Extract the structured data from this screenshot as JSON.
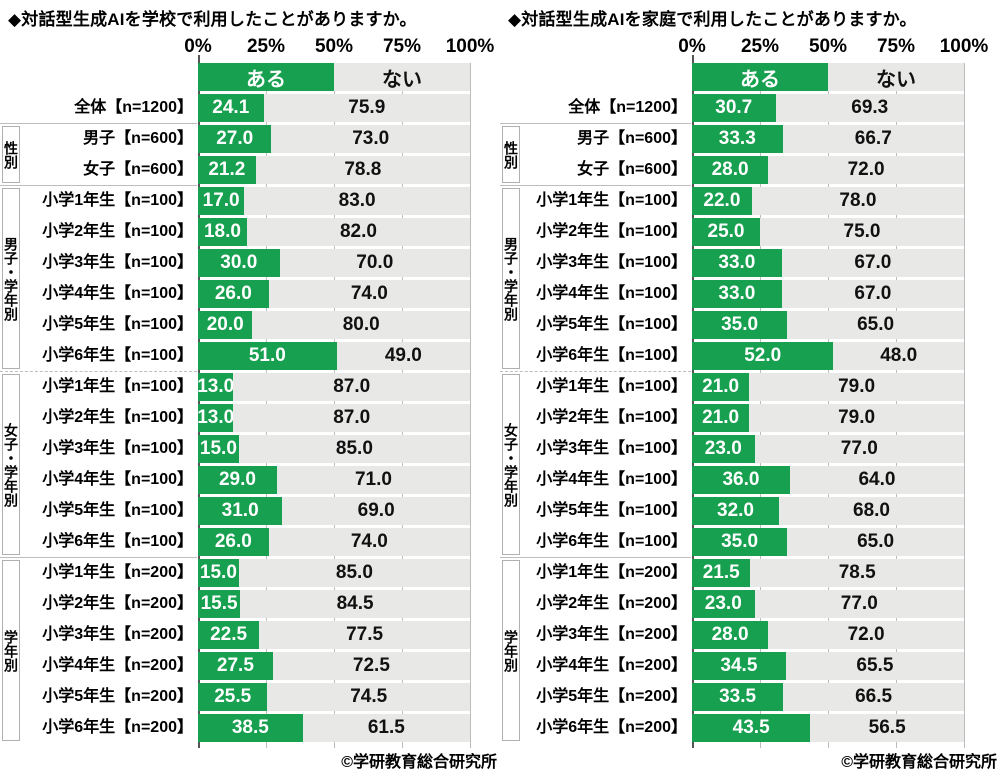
{
  "colors": {
    "yes_green": "#17a04f",
    "no_gray": "#e8e8e7",
    "grid_light": "#bdbdbd",
    "grid_zero": "#555555",
    "box_border": "#b0b0b0"
  },
  "chart_data": [
    {
      "type": "bar",
      "orientation": "horizontal",
      "stacked": true,
      "title": "◆対話型生成AIを学校で利用したことがありますか。",
      "legend": [
        "ある",
        "ない"
      ],
      "legend_position": "top",
      "x_ticks": [
        "0%",
        "25%",
        "50%",
        "75%",
        "100%"
      ],
      "xlim": [
        0,
        100
      ],
      "grid": true,
      "footer": "©学研教育総合研究所",
      "groups": [
        {
          "label": "",
          "box": false,
          "separator": "none",
          "rows": [
            {
              "label": "全体【n=1200】",
              "yes": 24.1,
              "no": 75.9
            }
          ]
        },
        {
          "label": "性別",
          "box": true,
          "separator": "solid",
          "rows": [
            {
              "label": "男子【n=600】",
              "yes": 27.0,
              "no": 73.0
            },
            {
              "label": "女子【n=600】",
              "yes": 21.2,
              "no": 78.8
            }
          ]
        },
        {
          "label": "男子・学年別",
          "box": true,
          "separator": "solid",
          "rows": [
            {
              "label": "小学1年生【n=100】",
              "yes": 17.0,
              "no": 83.0
            },
            {
              "label": "小学2年生【n=100】",
              "yes": 18.0,
              "no": 82.0
            },
            {
              "label": "小学3年生【n=100】",
              "yes": 30.0,
              "no": 70.0
            },
            {
              "label": "小学4年生【n=100】",
              "yes": 26.0,
              "no": 74.0
            },
            {
              "label": "小学5年生【n=100】",
              "yes": 20.0,
              "no": 80.0
            },
            {
              "label": "小学6年生【n=100】",
              "yes": 51.0,
              "no": 49.0
            }
          ]
        },
        {
          "label": "女子・学年別",
          "box": true,
          "separator": "dashed",
          "rows": [
            {
              "label": "小学1年生【n=100】",
              "yes": 13.0,
              "no": 87.0
            },
            {
              "label": "小学2年生【n=100】",
              "yes": 13.0,
              "no": 87.0
            },
            {
              "label": "小学3年生【n=100】",
              "yes": 15.0,
              "no": 85.0
            },
            {
              "label": "小学4年生【n=100】",
              "yes": 29.0,
              "no": 71.0
            },
            {
              "label": "小学5年生【n=100】",
              "yes": 31.0,
              "no": 69.0
            },
            {
              "label": "小学6年生【n=100】",
              "yes": 26.0,
              "no": 74.0
            }
          ]
        },
        {
          "label": "学年別",
          "box": true,
          "separator": "solid",
          "rows": [
            {
              "label": "小学1年生【n=200】",
              "yes": 15.0,
              "no": 85.0
            },
            {
              "label": "小学2年生【n=200】",
              "yes": 15.5,
              "no": 84.5
            },
            {
              "label": "小学3年生【n=200】",
              "yes": 22.5,
              "no": 77.5
            },
            {
              "label": "小学4年生【n=200】",
              "yes": 27.5,
              "no": 72.5
            },
            {
              "label": "小学5年生【n=200】",
              "yes": 25.5,
              "no": 74.5
            },
            {
              "label": "小学6年生【n=200】",
              "yes": 38.5,
              "no": 61.5
            }
          ]
        }
      ]
    },
    {
      "type": "bar",
      "orientation": "horizontal",
      "stacked": true,
      "title": "◆対話型生成AIを家庭で利用したことがありますか。",
      "legend": [
        "ある",
        "ない"
      ],
      "legend_position": "top",
      "x_ticks": [
        "0%",
        "25%",
        "50%",
        "75%",
        "100%"
      ],
      "xlim": [
        0,
        100
      ],
      "grid": true,
      "footer": "©学研教育総合研究所",
      "groups": [
        {
          "label": "",
          "box": false,
          "separator": "none",
          "rows": [
            {
              "label": "全体【n=1200】",
              "yes": 30.7,
              "no": 69.3
            }
          ]
        },
        {
          "label": "性別",
          "box": true,
          "separator": "solid",
          "rows": [
            {
              "label": "男子【n=600】",
              "yes": 33.3,
              "no": 66.7
            },
            {
              "label": "女子【n=600】",
              "yes": 28.0,
              "no": 72.0
            }
          ]
        },
        {
          "label": "男子・学年別",
          "box": true,
          "separator": "solid",
          "rows": [
            {
              "label": "小学1年生【n=100】",
              "yes": 22.0,
              "no": 78.0
            },
            {
              "label": "小学2年生【n=100】",
              "yes": 25.0,
              "no": 75.0
            },
            {
              "label": "小学3年生【n=100】",
              "yes": 33.0,
              "no": 67.0
            },
            {
              "label": "小学4年生【n=100】",
              "yes": 33.0,
              "no": 67.0
            },
            {
              "label": "小学5年生【n=100】",
              "yes": 35.0,
              "no": 65.0
            },
            {
              "label": "小学6年生【n=100】",
              "yes": 52.0,
              "no": 48.0
            }
          ]
        },
        {
          "label": "女子・学年別",
          "box": true,
          "separator": "dashed",
          "rows": [
            {
              "label": "小学1年生【n=100】",
              "yes": 21.0,
              "no": 79.0
            },
            {
              "label": "小学2年生【n=100】",
              "yes": 21.0,
              "no": 79.0
            },
            {
              "label": "小学3年生【n=100】",
              "yes": 23.0,
              "no": 77.0
            },
            {
              "label": "小学4年生【n=100】",
              "yes": 36.0,
              "no": 64.0
            },
            {
              "label": "小学5年生【n=100】",
              "yes": 32.0,
              "no": 68.0
            },
            {
              "label": "小学6年生【n=100】",
              "yes": 35.0,
              "no": 65.0
            }
          ]
        },
        {
          "label": "学年別",
          "box": true,
          "separator": "solid",
          "rows": [
            {
              "label": "小学1年生【n=200】",
              "yes": 21.5,
              "no": 78.5
            },
            {
              "label": "小学2年生【n=200】",
              "yes": 23.0,
              "no": 77.0
            },
            {
              "label": "小学3年生【n=200】",
              "yes": 28.0,
              "no": 72.0
            },
            {
              "label": "小学4年生【n=200】",
              "yes": 34.5,
              "no": 65.5
            },
            {
              "label": "小学5年生【n=200】",
              "yes": 33.5,
              "no": 66.5
            },
            {
              "label": "小学6年生【n=200】",
              "yes": 43.5,
              "no": 56.5
            }
          ]
        }
      ]
    }
  ]
}
